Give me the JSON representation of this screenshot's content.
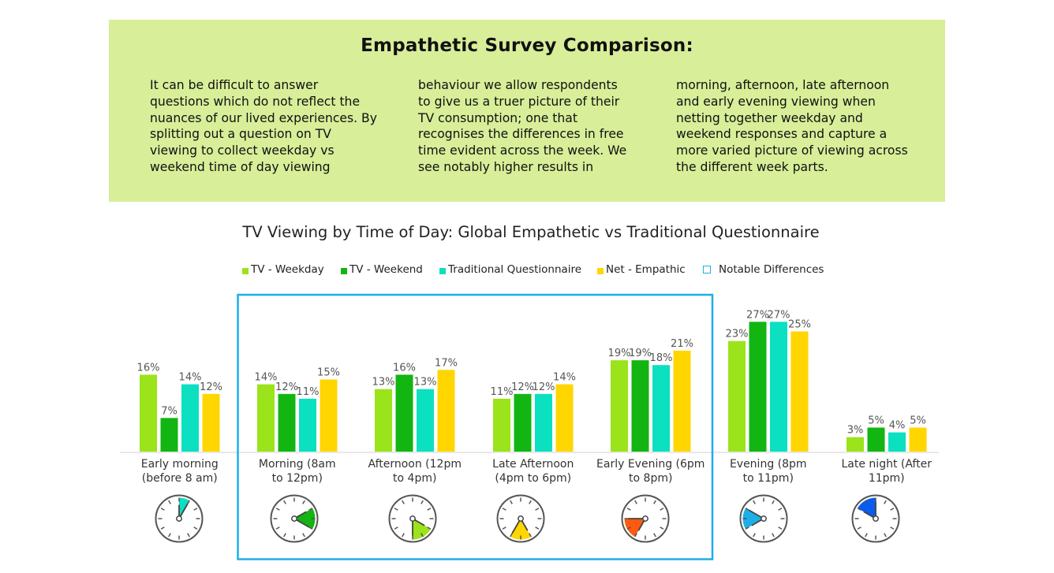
{
  "info": {
    "title": "Empathetic Survey Comparison:",
    "col1": "It can be difficult to answer questions which do not reflect the nuances of our lived experiences. By splitting out a question on TV viewing to collect weekday vs weekend time of day viewing",
    "col2": "behaviour we allow respondents to give us a truer picture of their TV consumption; one that recognises the differences in free time evident across the week. We see notably higher results in",
    "col3": "morning, afternoon, late afternoon and early evening viewing when netting together weekday and weekend responses and capture a more varied picture of viewing across the different week parts."
  },
  "legend": [
    {
      "label": "TV - Weekday",
      "color": "#9be31a",
      "type": "square"
    },
    {
      "label": "TV - Weekend",
      "color": "#12b512",
      "type": "square"
    },
    {
      "label": "Traditional Questionnaire",
      "color": "#0be0c0",
      "type": "square"
    },
    {
      "label": "Net - Empathic",
      "color": "#ffd600",
      "type": "square"
    },
    {
      "label": "Notable Differences",
      "color": "#1eaee8",
      "type": "outline"
    }
  ],
  "chart_data": {
    "type": "bar",
    "title": "TV Viewing by Time of Day: Global Empathetic vs Traditional Questionnaire",
    "categories": [
      "Early morning\n(before 8 am)",
      "Morning  (8am\nto 12pm)",
      "Afternoon (12pm\nto 4pm)",
      "Late Afternoon\n(4pm  to 6pm)",
      "Early Evening (6pm\nto 8pm)",
      "Evening (8pm\nto 11pm)",
      "Late night (After\n11pm)"
    ],
    "series": [
      {
        "name": "TV - Weekday",
        "color": "#9be31a",
        "values": [
          16,
          14,
          13,
          11,
          19,
          23,
          3
        ]
      },
      {
        "name": "TV - Weekend",
        "color": "#12b512",
        "values": [
          7,
          12,
          16,
          12,
          19,
          27,
          5
        ]
      },
      {
        "name": "Traditional Questionnaire",
        "color": "#0be0c0",
        "values": [
          14,
          11,
          13,
          12,
          18,
          27,
          4
        ]
      },
      {
        "name": "Net - Empathic",
        "color": "#ffd600",
        "values": [
          12,
          15,
          17,
          14,
          21,
          25,
          5
        ]
      }
    ],
    "value_suffix": "%",
    "ylim": [
      0,
      30
    ],
    "grid": false,
    "legend_position": "top",
    "notable_differences": [
      "Morning  (8am\nto 12pm)",
      "Afternoon (12pm\nto 4pm)",
      "Late Afternoon\n(4pm  to 6pm)",
      "Early Evening (6pm\nto 8pm)"
    ],
    "clock_icons": [
      {
        "name": "clock-early-morning-icon",
        "from_hour": 12,
        "to_hour": 1,
        "color": "#0be0c0"
      },
      {
        "name": "clock-morning-icon",
        "from_hour": 2,
        "to_hour": 4,
        "color": "#12b512"
      },
      {
        "name": "clock-afternoon-icon",
        "from_hour": 4,
        "to_hour": 6,
        "color": "#9be31a"
      },
      {
        "name": "clock-late-afternoon-icon",
        "from_hour": 5,
        "to_hour": 7,
        "color": "#ffd600"
      },
      {
        "name": "clock-early-evening-icon",
        "from_hour": 7,
        "to_hour": 9,
        "color": "#ff5a10"
      },
      {
        "name": "clock-evening-icon",
        "from_hour": 8,
        "to_hour": 10,
        "color": "#1eaee8"
      },
      {
        "name": "clock-late-night-icon",
        "from_hour": 10,
        "to_hour": 12,
        "color": "#0a5cf0"
      }
    ]
  }
}
